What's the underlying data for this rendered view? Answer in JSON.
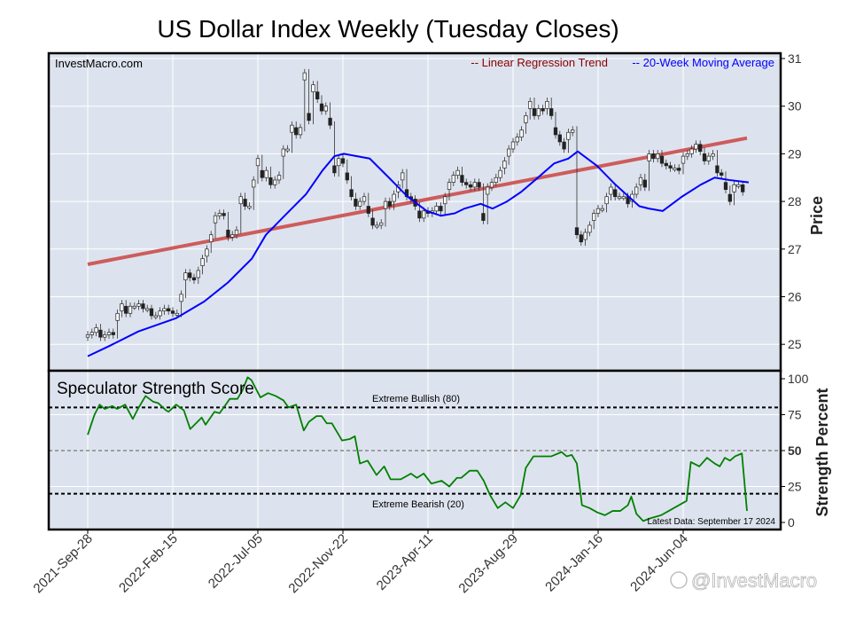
{
  "chart_data": [
    {
      "type": "candlestick",
      "title": "US Dollar Index Weekly (Tuesday Closes)",
      "ylabel": "Price",
      "ylim": [
        24.6,
        31
      ],
      "yticks": [
        25,
        26,
        27,
        28,
        29,
        30,
        31
      ],
      "grid": true,
      "source_label": "InvestMacro.com",
      "legend": {
        "placement": "top-right",
        "entries": [
          {
            "label": "-- Linear Regression Trend",
            "color": "#8b0000"
          },
          {
            "label": "-- 20-Week Moving Average",
            "color": "#0000ff"
          }
        ]
      },
      "x_note": "weekly index from 2021-Sep-28 (0) to 2024-Sep-17 (155)",
      "closes": [
        25.2,
        25.25,
        25.35,
        25.15,
        25.2,
        25.25,
        25.2,
        25.65,
        25.85,
        25.65,
        25.8,
        25.8,
        25.85,
        25.75,
        25.75,
        25.6,
        25.6,
        25.7,
        25.75,
        25.7,
        25.65,
        25.65,
        26.05,
        26.5,
        26.4,
        26.35,
        26.55,
        26.8,
        27.0,
        27.3,
        27.7,
        27.75,
        27.7,
        27.25,
        27.3,
        27.4,
        28.1,
        27.9,
        27.9,
        28.45,
        28.9,
        28.5,
        28.65,
        28.35,
        28.45,
        28.55,
        29.1,
        29.1,
        29.6,
        29.4,
        29.55,
        30.7,
        29.7,
        30.45,
        30.15,
        29.9,
        30.0,
        29.6,
        28.6,
        28.9,
        28.8,
        28.45,
        28.1,
        27.9,
        28.0,
        28.1,
        27.75,
        27.5,
        27.5,
        27.55,
        28.0,
        27.9,
        28.15,
        28.35,
        28.6,
        28.1,
        28.05,
        27.9,
        27.65,
        27.8,
        27.75,
        27.8,
        27.9,
        27.8,
        28.1,
        28.4,
        28.55,
        28.65,
        28.4,
        28.35,
        28.3,
        28.4,
        28.3,
        27.6,
        28.3,
        28.4,
        28.5,
        28.65,
        28.85,
        29.1,
        29.25,
        29.35,
        29.5,
        29.8,
        30.1,
        29.8,
        29.95,
        29.9,
        30.1,
        29.8,
        29.4,
        29.25,
        29.1,
        29.45,
        29.5,
        27.3,
        27.15,
        27.35,
        27.5,
        27.75,
        27.85,
        27.85,
        28.1,
        28.3,
        28.1,
        28.1,
        28.1,
        27.95,
        28.15,
        28.3,
        28.5,
        28.3,
        29.0,
        28.9,
        29.0,
        28.8,
        28.75,
        28.7,
        28.7,
        28.65,
        28.95,
        29.0,
        29.1,
        29.2,
        29.05,
        28.85,
        28.95,
        29.0,
        28.6,
        28.55,
        28.25,
        28.0,
        28.35,
        28.35,
        28.2
      ],
      "moving_average_20w": [
        [
          0,
          24.75
        ],
        [
          5.2,
          24.97
        ],
        [
          11.9,
          25.27
        ],
        [
          20.8,
          25.55
        ],
        [
          27.4,
          25.9
        ],
        [
          33,
          26.3
        ],
        [
          38.6,
          26.8
        ],
        [
          41.9,
          27.3
        ],
        [
          46.3,
          27.7
        ],
        [
          51.3,
          28.15
        ],
        [
          55.2,
          28.65
        ],
        [
          58,
          28.95
        ],
        [
          60.2,
          29.0
        ],
        [
          66.3,
          28.9
        ],
        [
          70.8,
          28.5
        ],
        [
          75.2,
          28.1
        ],
        [
          79.7,
          27.8
        ],
        [
          83,
          27.7
        ],
        [
          86.3,
          27.75
        ],
        [
          88.6,
          27.85
        ],
        [
          92.4,
          27.95
        ],
        [
          95.2,
          27.85
        ],
        [
          98.6,
          28.0
        ],
        [
          101.9,
          28.2
        ],
        [
          105.2,
          28.45
        ],
        [
          109.7,
          28.8
        ],
        [
          113,
          28.9
        ],
        [
          115.2,
          29.05
        ],
        [
          119.7,
          28.75
        ],
        [
          124.1,
          28.35
        ],
        [
          129.7,
          27.9
        ],
        [
          131.9,
          27.85
        ],
        [
          135.2,
          27.8
        ],
        [
          139.7,
          28.1
        ],
        [
          144.1,
          28.35
        ],
        [
          147.4,
          28.5
        ],
        [
          150.8,
          28.45
        ],
        [
          155.4,
          28.4
        ]
      ],
      "regression_trend": {
        "start": [
          0,
          26.68
        ],
        "end": [
          155,
          29.33
        ]
      }
    },
    {
      "type": "line",
      "title": "Speculator Strength Score",
      "ylabel": "Strength Percent",
      "ylim": [
        0,
        100
      ],
      "yticks": [
        0,
        25,
        50,
        75,
        100
      ],
      "reference_lines": [
        {
          "value": 80,
          "label": "Extreme Bullish (80)"
        },
        {
          "value": 50,
          "label": ""
        },
        {
          "value": 20,
          "label": "Extreme Bearish (20)"
        }
      ],
      "annotation": "Latest Data: September 17 2024",
      "color": "#008000",
      "points": [
        [
          0,
          61
        ],
        [
          1.6,
          75
        ],
        [
          2.8,
          82
        ],
        [
          4,
          79
        ],
        [
          5.8,
          81
        ],
        [
          6.9,
          79
        ],
        [
          8.8,
          82
        ],
        [
          10.6,
          72
        ],
        [
          11.8,
          79
        ],
        [
          13.6,
          88
        ],
        [
          15.4,
          84
        ],
        [
          16.6,
          83
        ],
        [
          18.4,
          78
        ],
        [
          19,
          77
        ],
        [
          20.8,
          82
        ],
        [
          22.6,
          78
        ],
        [
          24.1,
          65
        ],
        [
          26.8,
          73
        ],
        [
          27.7,
          68
        ],
        [
          29.8,
          77
        ],
        [
          31,
          76
        ],
        [
          33.4,
          86
        ],
        [
          35.2,
          86
        ],
        [
          36.4,
          92
        ],
        [
          37.6,
          101
        ],
        [
          38.5,
          99
        ],
        [
          40.6,
          87
        ],
        [
          42.4,
          90
        ],
        [
          44.2,
          88
        ],
        [
          46,
          85
        ],
        [
          47.2,
          80
        ],
        [
          49,
          82
        ],
        [
          50.8,
          64
        ],
        [
          52,
          70
        ],
        [
          53.8,
          74
        ],
        [
          55,
          74
        ],
        [
          56.2,
          69
        ],
        [
          57.4,
          69
        ],
        [
          59.8,
          57
        ],
        [
          61.6,
          58
        ],
        [
          62.8,
          60
        ],
        [
          64,
          41
        ],
        [
          65.8,
          43
        ],
        [
          67.9,
          33
        ],
        [
          69.7,
          39
        ],
        [
          71.2,
          30
        ],
        [
          73.6,
          30
        ],
        [
          76,
          34
        ],
        [
          77.4,
          31
        ],
        [
          79,
          34
        ],
        [
          80.8,
          27
        ],
        [
          83.2,
          29
        ],
        [
          85,
          25
        ],
        [
          86.8,
          31
        ],
        [
          87.8,
          31
        ],
        [
          89.8,
          36
        ],
        [
          91.6,
          36
        ],
        [
          93.1,
          29
        ],
        [
          94.6,
          19
        ],
        [
          96.4,
          10
        ],
        [
          98.2,
          14
        ],
        [
          100,
          10
        ],
        [
          101.8,
          19
        ],
        [
          103,
          38
        ],
        [
          104.8,
          46
        ],
        [
          106.6,
          46
        ],
        [
          109,
          46
        ],
        [
          111.4,
          49
        ],
        [
          112.6,
          46
        ],
        [
          113.8,
          47
        ],
        [
          115,
          41
        ],
        [
          116.2,
          12
        ],
        [
          118,
          10
        ],
        [
          119.8,
          7
        ],
        [
          121.6,
          5
        ],
        [
          123.4,
          8
        ],
        [
          125.2,
          8
        ],
        [
          127,
          12
        ],
        [
          127.8,
          18
        ],
        [
          129,
          6
        ],
        [
          130.6,
          1
        ],
        [
          132.4,
          3
        ],
        [
          134.8,
          5
        ],
        [
          136.6,
          8
        ],
        [
          138.4,
          11
        ],
        [
          140.2,
          14
        ],
        [
          140.8,
          15
        ],
        [
          141.8,
          42
        ],
        [
          143.8,
          39
        ],
        [
          145.6,
          45
        ],
        [
          147.4,
          41
        ],
        [
          148.6,
          39
        ],
        [
          149.8,
          45
        ],
        [
          151,
          43
        ],
        [
          152.2,
          46
        ],
        [
          153.8,
          48
        ],
        [
          155,
          8
        ]
      ]
    }
  ],
  "x_axis": {
    "tick_labels": [
      "2021-Sep-28",
      "2022-Feb-15",
      "2022-Jul-05",
      "2022-Nov-22",
      "2023-Apr-11",
      "2023-Aug-29",
      "2024-Jan-16",
      "2024-Jun-04"
    ],
    "tick_weeks": [
      0,
      20,
      40,
      60,
      80,
      100,
      120,
      140
    ]
  },
  "watermark": "@InvestMacro",
  "colors": {
    "panel_bg": "#dde3ee",
    "trend": "#cd5c5c",
    "ma": "#0000ff",
    "score": "#008000",
    "legend_trend": "#8b0000"
  }
}
